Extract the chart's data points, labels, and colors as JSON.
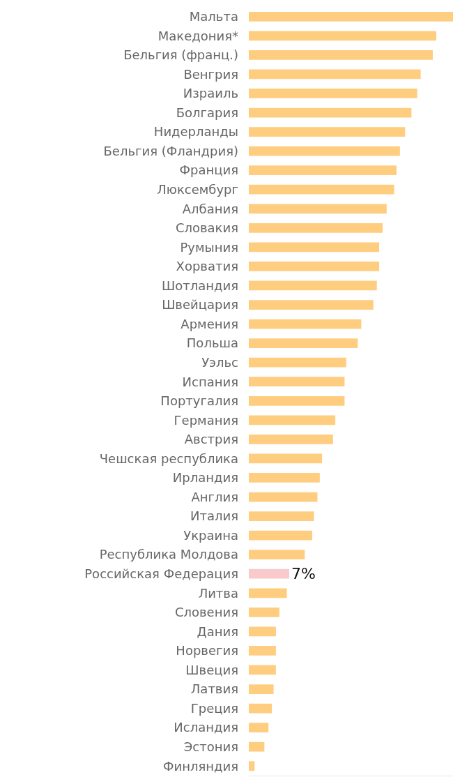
{
  "chart_data": {
    "type": "bar",
    "orientation": "horizontal",
    "xlim": [
      0,
      35.4
    ],
    "tick_labels": "y",
    "categories": [
      "Мальта",
      "Македония*",
      "Бельгия (франц.)",
      "Венгрия",
      "Израиль",
      "Болгария",
      "Нидерланды",
      "Бельгия (Фландрия)",
      "Франция",
      "Люксембург",
      "Албания",
      "Словакия",
      "Румыния",
      "Хорватия",
      "Шотландия",
      "Швейцария",
      "Армения",
      "Польша",
      "Уэльс",
      "Испания",
      "Португалия",
      "Германия",
      "Австрия",
      "Чешская республика",
      "Ирландия",
      "Англия",
      "Италия",
      "Украина",
      "Республика Молдова",
      "Российская Федерация",
      "Литва",
      "Словения",
      "Дания",
      "Норвегия",
      "Швеция",
      "Латвия",
      "Греция",
      "Исландия",
      "Эстония",
      "Финляндия"
    ],
    "values": [
      35.4,
      32.5,
      31.9,
      29.8,
      29.2,
      28.2,
      27.1,
      26.2,
      25.6,
      25.2,
      23.9,
      23.2,
      22.6,
      22.6,
      22.2,
      21.6,
      19.5,
      18.9,
      16.9,
      16.6,
      16.6,
      15.0,
      14.6,
      12.7,
      12.3,
      11.9,
      11.3,
      11.0,
      9.7,
      7,
      6.6,
      5.3,
      4.7,
      4.7,
      4.7,
      4.3,
      4.0,
      3.4,
      2.7,
      1.0
    ],
    "colors": [
      "#ffcd80",
      "#ffcd80",
      "#ffcd80",
      "#ffcd80",
      "#ffcd80",
      "#ffcd80",
      "#ffcd80",
      "#ffcd80",
      "#ffcd80",
      "#ffcd80",
      "#ffcd80",
      "#ffcd80",
      "#ffcd80",
      "#ffcd80",
      "#ffcd80",
      "#ffcd80",
      "#ffcd80",
      "#ffcd80",
      "#ffcd80",
      "#ffcd80",
      "#ffcd80",
      "#ffcd80",
      "#ffcd80",
      "#ffcd80",
      "#ffcd80",
      "#ffcd80",
      "#ffcd80",
      "#ffcd80",
      "#ffcd80",
      "#f9c9cc",
      "#ffcd80",
      "#ffcd80",
      "#ffcd80",
      "#ffcd80",
      "#ffcd80",
      "#ffcd80",
      "#ffcd80",
      "#ffcd80",
      "#ffcd80",
      "#ffcd80"
    ],
    "value_labels": [
      null,
      null,
      null,
      null,
      null,
      null,
      null,
      null,
      null,
      null,
      null,
      null,
      null,
      null,
      null,
      null,
      null,
      null,
      null,
      null,
      null,
      null,
      null,
      null,
      null,
      null,
      null,
      null,
      null,
      "7%",
      null,
      null,
      null,
      null,
      null,
      null,
      null,
      null,
      null,
      null
    ]
  }
}
